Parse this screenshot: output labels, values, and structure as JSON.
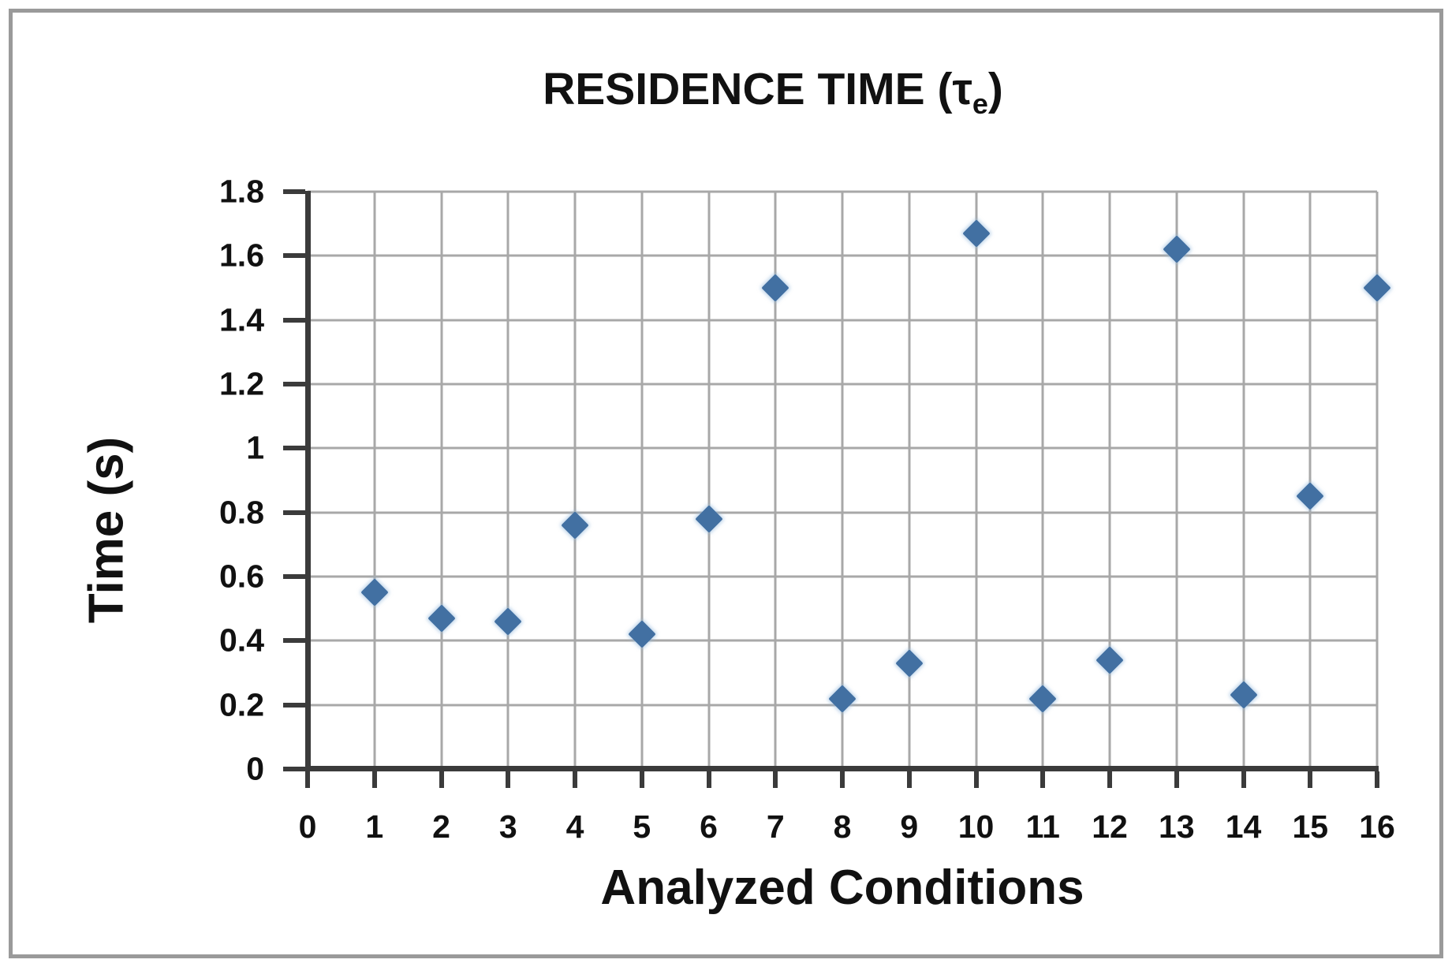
{
  "colors": {
    "marker": "#4270a2",
    "gridline": "#a8a8a8",
    "axis": "#3b3b3b",
    "text": "#111111",
    "frame_border": "#9a9a9a",
    "background": "#ffffff"
  },
  "chart_data": {
    "type": "scatter",
    "title": "RESIDENCE TIME (τe)",
    "title_parts": {
      "main": "RESIDENCE TIME (τ",
      "sub": "e",
      "close": ")"
    },
    "xlabel": "Analyzed Conditions",
    "ylabel": "Time (s)",
    "xlim": [
      0,
      16
    ],
    "ylim": [
      0,
      1.8
    ],
    "x_ticks": [
      0,
      1,
      2,
      3,
      4,
      5,
      6,
      7,
      8,
      9,
      10,
      11,
      12,
      13,
      14,
      15,
      16
    ],
    "y_tick_labels": [
      "0",
      "0.2",
      "0.4",
      "0.6",
      "0.8",
      "1",
      "1.2",
      "1.4",
      "1.6",
      "1.8"
    ],
    "grid": true,
    "legend": "none",
    "marker": "diamond",
    "series": [
      {
        "name": "Residence time",
        "x": [
          1,
          2,
          3,
          4,
          5,
          6,
          7,
          8,
          9,
          10,
          11,
          12,
          13,
          14,
          15,
          16
        ],
        "values": [
          0.55,
          0.47,
          0.46,
          0.76,
          0.42,
          0.78,
          1.5,
          0.22,
          0.33,
          1.67,
          0.22,
          0.34,
          1.62,
          0.23,
          0.85,
          1.5
        ]
      }
    ]
  }
}
